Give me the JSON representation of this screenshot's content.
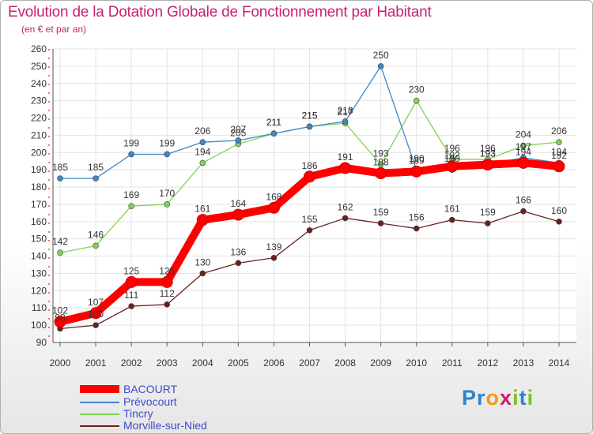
{
  "title": "Evolution de la Dotation Globale de Fonctionnement par Habitant",
  "subtitle": "(en € et par an)",
  "logo": {
    "letters": [
      "P",
      "r",
      "o",
      "x",
      "i",
      "t",
      "i"
    ],
    "colors": [
      "#2a86c8",
      "#2a86c8",
      "#f39c12",
      "#c8226e",
      "#7cbf2a",
      "#2a86c8",
      "#7cbf2a"
    ]
  },
  "chart_data": {
    "type": "line",
    "title": "Evolution de la Dotation Globale de Fonctionnement par Habitant",
    "subtitle": "(en € et par an)",
    "xlabel": "",
    "ylabel": "",
    "x": [
      "2000",
      "2001",
      "2002",
      "2003",
      "2004",
      "2005",
      "2006",
      "2007",
      "2008",
      "2009",
      "2010",
      "2011",
      "2012",
      "2013",
      "2014"
    ],
    "ylim": [
      90,
      260
    ],
    "yticks": [
      90,
      100,
      110,
      120,
      130,
      140,
      150,
      160,
      170,
      180,
      190,
      200,
      210,
      220,
      230,
      240,
      250,
      260
    ],
    "grid": true,
    "legend_position": "bottom-left",
    "series": [
      {
        "name": "BACOURT",
        "color": "#ff0000",
        "values": [
          102,
          107,
          125,
          125,
          161,
          164,
          168,
          186,
          191,
          188,
          189,
          192,
          193,
          194,
          192
        ]
      },
      {
        "name": "Prévocourt",
        "color": "#3f87c9",
        "values": [
          185,
          185,
          199,
          199,
          206,
          207,
          211,
          215,
          218,
          250,
          190,
          190,
          193,
          197,
          194
        ]
      },
      {
        "name": "Tincry",
        "color": "#7fd455",
        "values": [
          142,
          146,
          169,
          170,
          194,
          205,
          211,
          215,
          217,
          193,
          230,
          196,
          196,
          204,
          206
        ]
      },
      {
        "name": "Morville-sur-Nied",
        "color": "#6b1f1f",
        "values": [
          98,
          100,
          111,
          112,
          130,
          136,
          139,
          155,
          162,
          159,
          156,
          161,
          159,
          166,
          160
        ]
      }
    ]
  }
}
